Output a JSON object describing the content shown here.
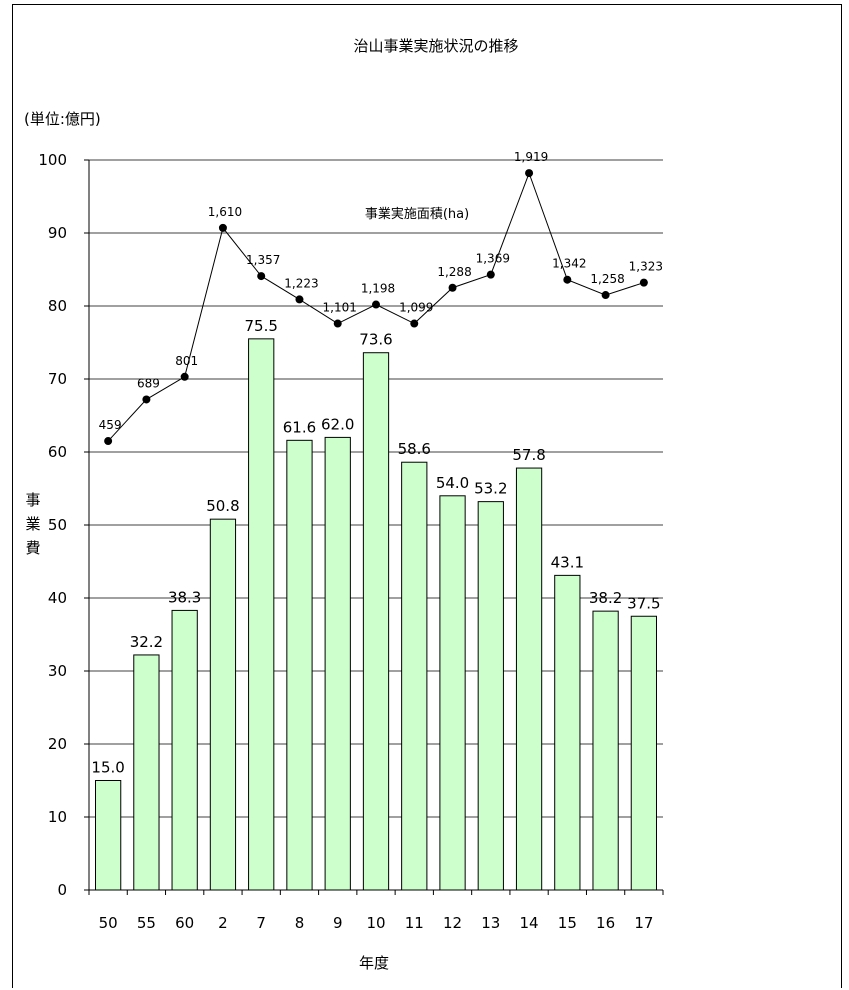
{
  "chart_data": {
    "type": "bar",
    "title": "治山事業実施状況の推移",
    "unit_label": "(単位:億円)",
    "ylabel": "事業費",
    "xlabel": "年度",
    "categories": [
      "50",
      "55",
      "60",
      "2",
      "7",
      "8",
      "9",
      "10",
      "11",
      "12",
      "13",
      "14",
      "15",
      "16",
      "17"
    ],
    "ylim": [
      0,
      100
    ],
    "yticks": [
      0,
      10,
      20,
      30,
      40,
      50,
      60,
      70,
      80,
      90,
      100
    ],
    "grid": true,
    "series": [
      {
        "type": "bar",
        "values": [
          15.0,
          32.2,
          38.3,
          50.8,
          75.5,
          61.6,
          62.0,
          73.6,
          58.6,
          54.0,
          53.2,
          57.8,
          43.1,
          38.2,
          37.5
        ],
        "labels": [
          "15.0",
          "32.2",
          "38.3",
          "50.8",
          "75.5",
          "61.6",
          "62.0",
          "73.6",
          "58.6",
          "54.0",
          "53.2",
          "57.8",
          "43.1",
          "38.2",
          "37.5"
        ],
        "color": "#ccffcc"
      },
      {
        "name": "事業実施面積(ha)",
        "type": "line",
        "values": [
          459,
          689,
          801,
          1610,
          1357,
          1223,
          1101,
          1198,
          1099,
          1288,
          1369,
          1919,
          1342,
          1258,
          1323
        ],
        "labels": [
          "459",
          "689",
          "801",
          "1,610",
          "1,357",
          "1,223",
          "1,101",
          "1,198",
          "1,099",
          "1,288",
          "1,369",
          "1,919",
          "1,342",
          "1,258",
          "1,323"
        ],
        "plot_y": [
          61.5,
          67.2,
          70.3,
          90.7,
          84.1,
          80.9,
          77.6,
          80.2,
          77.6,
          82.5,
          84.3,
          98.2,
          83.6,
          81.5,
          83.2
        ],
        "color": "#000000"
      }
    ]
  }
}
